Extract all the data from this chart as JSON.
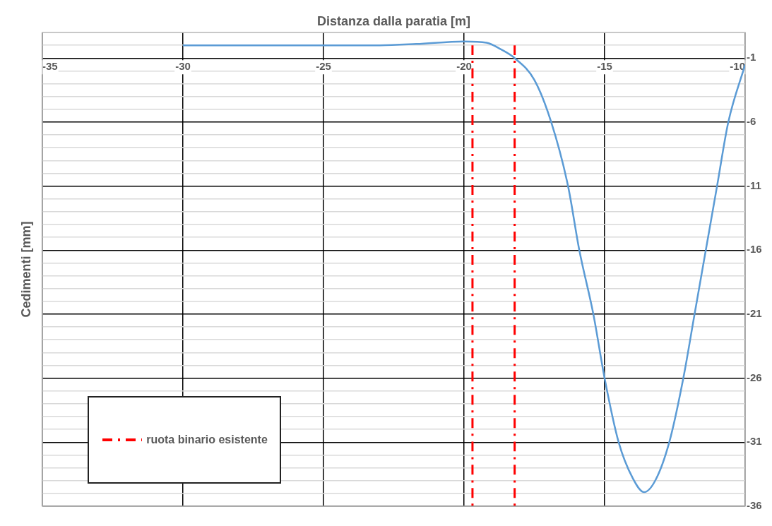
{
  "chart_data": {
    "type": "line",
    "xlabel": "Distanza dalla paratia [m]",
    "ylabel": "Cedimenti [mm]",
    "xlim": [
      -35,
      -10
    ],
    "xticks": [
      -35,
      -30,
      -25,
      -20,
      -15,
      -10
    ],
    "ylim": [
      -36,
      1
    ],
    "yticks": [
      {
        "value": 1,
        "label": null
      },
      {
        "value": 0,
        "label": null
      },
      -1,
      {
        "value": -2,
        "label": null
      },
      {
        "value": -3,
        "label": null
      },
      {
        "value": -4,
        "label": null
      },
      {
        "value": -5,
        "label": null
      },
      -6,
      {
        "value": -7,
        "label": null
      },
      {
        "value": -8,
        "label": null
      },
      {
        "value": -9,
        "label": null
      },
      {
        "value": -10,
        "label": null
      },
      -11,
      {
        "value": -12,
        "label": null
      },
      {
        "value": -13,
        "label": null
      },
      {
        "value": -14,
        "label": null
      },
      {
        "value": -15,
        "label": null
      },
      -16,
      {
        "value": -17,
        "label": null
      },
      {
        "value": -18,
        "label": null
      },
      {
        "value": -19,
        "label": null
      },
      {
        "value": -20,
        "label": null
      },
      -21,
      {
        "value": -22,
        "label": null
      },
      {
        "value": -23,
        "label": null
      },
      {
        "value": -24,
        "label": null
      },
      {
        "value": -25,
        "label": null
      },
      -26,
      {
        "value": -27,
        "label": null
      },
      {
        "value": -28,
        "label": null
      },
      {
        "value": -29,
        "label": null
      },
      {
        "value": -30,
        "label": null
      },
      -31,
      {
        "value": -32,
        "label": null
      },
      {
        "value": -33,
        "label": null
      },
      {
        "value": -34,
        "label": null
      },
      {
        "value": -35,
        "label": null
      },
      -36
    ],
    "grid": true,
    "legend": "bottom left",
    "marker": "none",
    "series": [
      {
        "color": "#5b9bd5",
        "line_style": "solid",
        "x": [
          -30,
          -25,
          -23,
          -21.7,
          -20,
          -19.2,
          -18.7,
          -18.2,
          -17.5,
          -16.9,
          -16.3,
          -15.9,
          -15.4,
          -15,
          -14.5,
          -14,
          -13.6,
          -13.2,
          -12.7,
          -12.2,
          -11.8,
          -11.4,
          -11,
          -10.6,
          -10
        ],
        "values": [
          0,
          0,
          0,
          0.1,
          0.3,
          0.2,
          -0.3,
          -1,
          -2.7,
          -6,
          -11,
          -16,
          -21,
          -26,
          -31,
          -33.8,
          -34.9,
          -34,
          -31,
          -26,
          -21,
          -16,
          -11,
          -6,
          -1.5
        ]
      },
      {
        "name": "ruota binario esistente",
        "color": "#ff0000",
        "line_style": "dashed",
        "x": [
          -19.7,
          -19.7,
          null,
          -18.2,
          -18.2
        ],
        "values": [
          0,
          -36,
          null,
          0,
          -36
        ]
      }
    ]
  }
}
